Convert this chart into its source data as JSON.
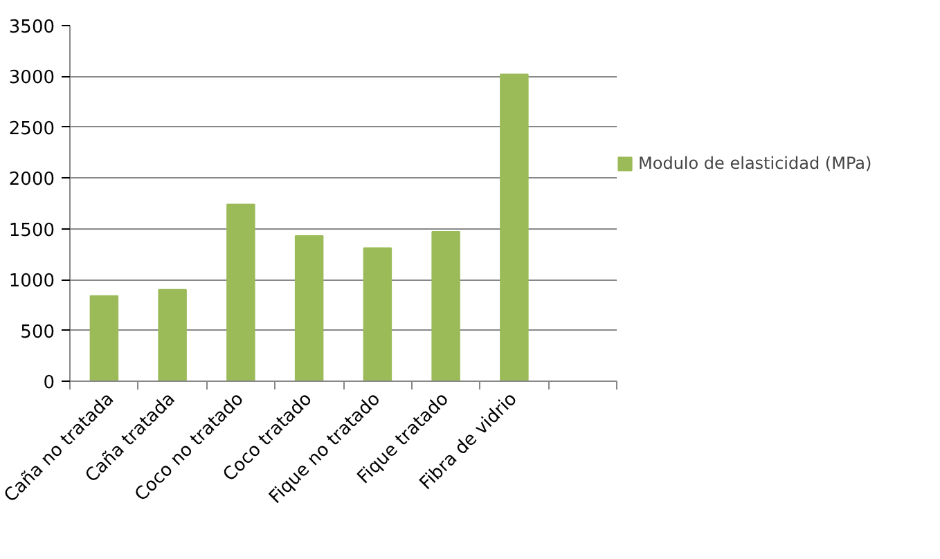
{
  "chart_data": {
    "type": "bar",
    "categories": [
      "Caña no tratada",
      "Caña tratada",
      "Coco no tratado",
      "Coco tratado",
      "Fique no tratado",
      "Fique tratado",
      "Fibra de vidrio",
      null
    ],
    "series": [
      {
        "name": "Modulo de elasticidad (MPa)",
        "color": "#9bbb59",
        "values": [
          840,
          900,
          1740,
          1430,
          1310,
          1470,
          3020,
          null
        ]
      }
    ],
    "ylim": [
      0,
      3500
    ],
    "yticks": [
      0,
      500,
      1000,
      1500,
      2000,
      2500,
      3000,
      3500
    ],
    "grid": "y",
    "legend": "right"
  }
}
